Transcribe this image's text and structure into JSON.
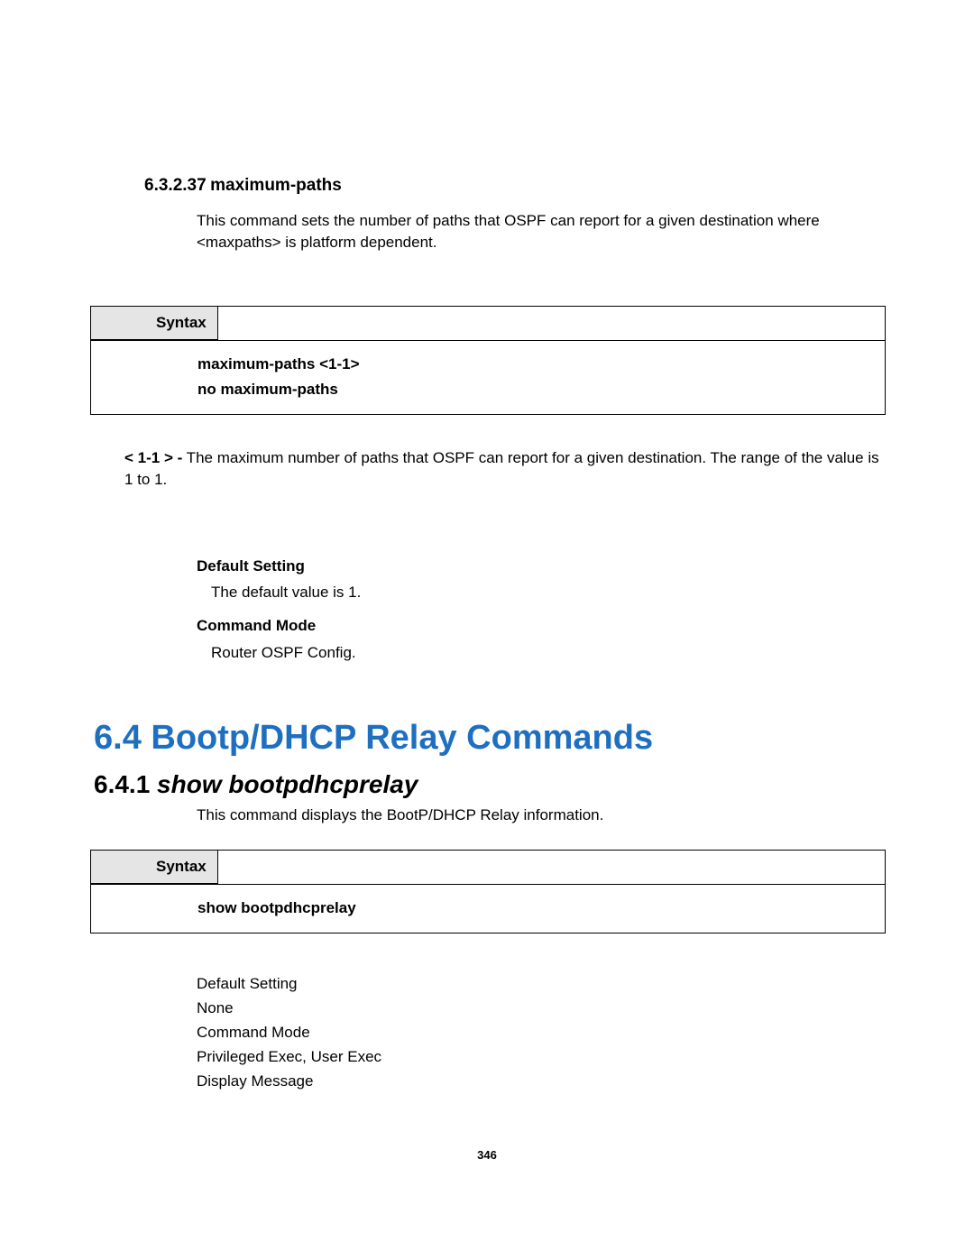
{
  "section1": {
    "number": "6.3.2.37",
    "title": "maximum-paths",
    "description": "This command sets the number of paths that OSPF can report for a given destination where <maxpaths> is platform dependent.",
    "syntax_label": "Syntax",
    "syntax_line1": "maximum-paths <1-1>",
    "syntax_line2": "no maximum-paths",
    "param_bold": "< 1-1 > -",
    "param_text": " The maximum number of paths that OSPF can report for a given destination. The range of the value is 1 to 1.",
    "default_setting_label": "Default Setting",
    "default_setting_value": "The default value is 1.",
    "command_mode_label": "Command Mode",
    "command_mode_value": "Router OSPF Config."
  },
  "section2": {
    "heading": "6.4 Bootp/DHCP Relay Commands",
    "sub_number": "6.4.1",
    "sub_title": " show bootpdhcprelay",
    "description": "This command displays the BootP/DHCP Relay information.",
    "syntax_label": "Syntax",
    "syntax_line1": "show bootpdhcprelay",
    "default_setting_label": "Default Setting",
    "default_setting_value": "None",
    "command_mode_label": "Command Mode",
    "command_mode_value": "Privileged Exec, User Exec",
    "display_message_label": "Display Message"
  },
  "page_number": "346"
}
